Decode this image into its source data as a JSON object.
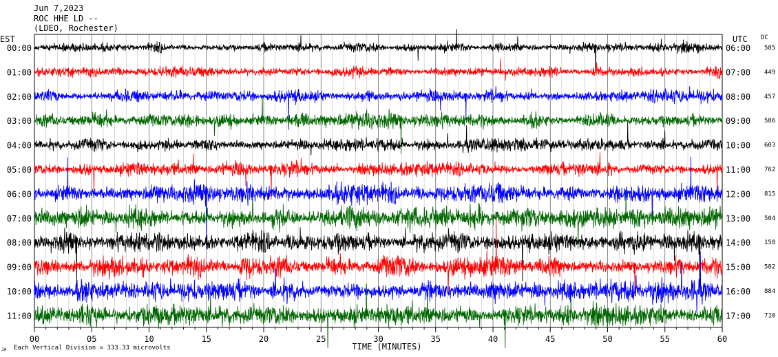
{
  "header": {
    "date": "Jun 7,2023",
    "station": "ROC HHE LD --",
    "network": "(LDEO, Rochester)"
  },
  "chart_data": {
    "type": "line",
    "left_zone_label": "EST",
    "right_zone_label": "UTC",
    "dc_label": "DC",
    "xlabel": "TIME (MINUTES)",
    "xlim": [
      0,
      60
    ],
    "x_ticks": [
      "00",
      "05",
      "10",
      "15",
      "20",
      "25",
      "30",
      "35",
      "40",
      "45",
      "50",
      "55",
      "60"
    ],
    "scale_note": "Each Vertical Division = 333.33 microvolts",
    "corner_mark": "JA",
    "trace_colors": [
      "#000000",
      "#ff0000",
      "#0000ff",
      "#006600"
    ],
    "traces": [
      {
        "est": "00:00",
        "utc": "06:00",
        "dc": "585"
      },
      {
        "est": "01:00",
        "utc": "07:00",
        "dc": "449"
      },
      {
        "est": "02:00",
        "utc": "08:00",
        "dc": "457"
      },
      {
        "est": "03:00",
        "utc": "09:00",
        "dc": "586"
      },
      {
        "est": "04:00",
        "utc": "10:00",
        "dc": "603"
      },
      {
        "est": "05:00",
        "utc": "11:00",
        "dc": "762"
      },
      {
        "est": "06:00",
        "utc": "12:00",
        "dc": "815"
      },
      {
        "est": "07:00",
        "utc": "13:00",
        "dc": "504"
      },
      {
        "est": "08:00",
        "utc": "14:00",
        "dc": "158"
      },
      {
        "est": "09:00",
        "utc": "15:00",
        "dc": "582"
      },
      {
        "est": "10:00",
        "utc": "16:00",
        "dc": "884"
      },
      {
        "est": "11:00",
        "utc": "17:00",
        "dc": "710"
      }
    ]
  }
}
